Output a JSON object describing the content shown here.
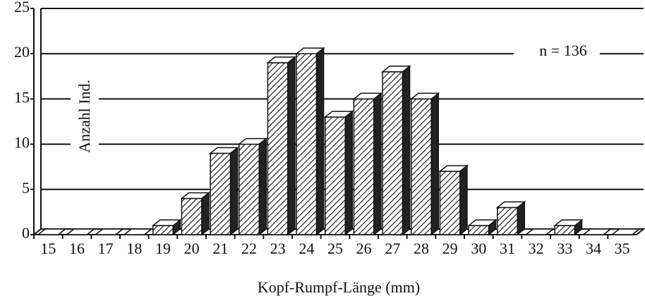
{
  "chart_data": {
    "type": "bar",
    "x_label": "Kopf-Rumpf-Länge (mm)",
    "y_label": "Anzahl Ind.",
    "annotation": "n = 136",
    "categories": [
      "15",
      "16",
      "17",
      "18",
      "19",
      "20",
      "21",
      "22",
      "23",
      "24",
      "25",
      "26",
      "27",
      "28",
      "29",
      "30",
      "31",
      "32",
      "33",
      "34",
      "35"
    ],
    "values": [
      0,
      0,
      0,
      0,
      1,
      4,
      9,
      10,
      19,
      20,
      13,
      15,
      18,
      15,
      7,
      1,
      3,
      0,
      1,
      0,
      0
    ],
    "color": "#ffffff",
    "ylim": [
      0,
      25
    ],
    "yticks": [
      0,
      5,
      10,
      15,
      20,
      25
    ],
    "grid": true
  }
}
